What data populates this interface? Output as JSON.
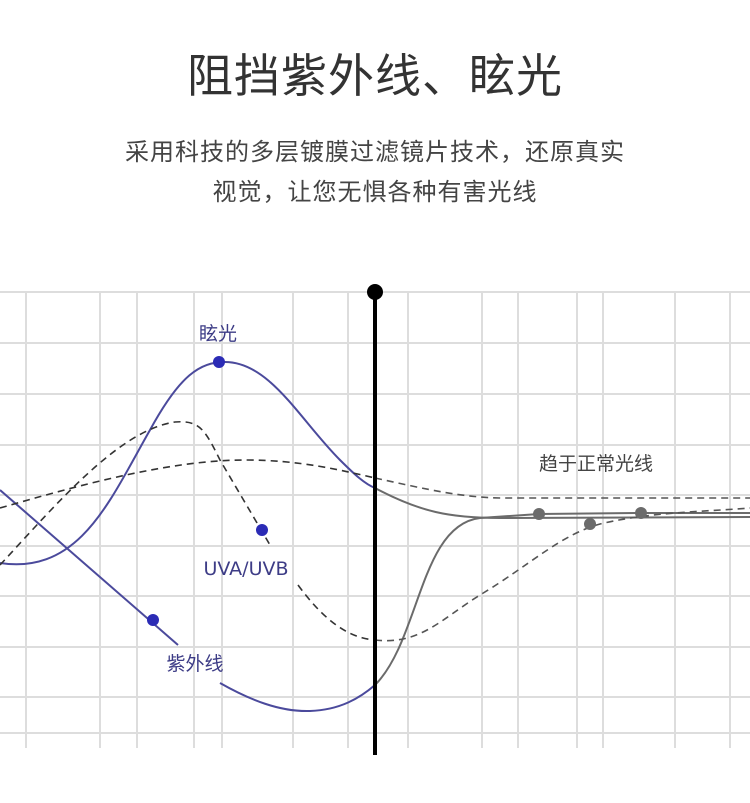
{
  "header": {
    "title": "阻挡紫外线、眩光",
    "subtitle_line1": "采用科技的多层镀膜过滤镜片技术，还原真实",
    "subtitle_line2": "视觉，让您无惧各种有害光线"
  },
  "diagram": {
    "labels": {
      "glare": "眩光",
      "uva_uvb": "UVA/UVB",
      "uv": "紫外线",
      "normal": "趋于正常光线"
    },
    "colors": {
      "harmful_line": "#4b4a9c",
      "harmful_dot": "#2b2bb5",
      "filtered_line": "#6b6b6b",
      "divider": "#000000",
      "grid": "#dddddd"
    }
  }
}
